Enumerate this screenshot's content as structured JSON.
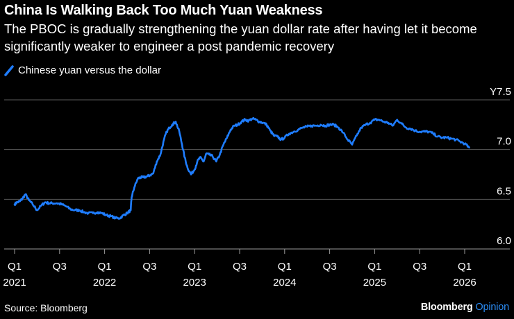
{
  "title": "China Is Walking Back Too Much Yuan Weakness",
  "subtitle": "The PBOC is gradually strengthening the yuan dollar rate after having let it become significantly weaker to engineer a post pandemic recovery",
  "source": "Source: Bloomberg",
  "brand": {
    "name": "Bloomberg",
    "suffix": "Opinion"
  },
  "colors": {
    "line": "#1f7dff",
    "grid": "#5a5a5a",
    "text": "#ffffff",
    "brand_accent": "#2b8cf5"
  },
  "chart_data": {
    "type": "line",
    "title": "China Is Walking Back Too Much Yuan Weakness",
    "xlabel": "",
    "ylabel": "",
    "ylim": [
      6.0,
      7.5
    ],
    "y_ticks": [
      {
        "value": 7.5,
        "label": "Y7.5"
      },
      {
        "value": 7.0,
        "label": "7.0"
      },
      {
        "value": 6.5,
        "label": "6.5"
      },
      {
        "value": 6.0,
        "label": "6.0"
      }
    ],
    "x_range": [
      2021.0,
      2026.1
    ],
    "x_ticks": [
      {
        "value": 2021.0,
        "quarter": "Q1",
        "year": "2021"
      },
      {
        "value": 2021.5,
        "quarter": "Q3",
        "year": ""
      },
      {
        "value": 2022.0,
        "quarter": "Q1",
        "year": "2022"
      },
      {
        "value": 2022.5,
        "quarter": "Q3",
        "year": ""
      },
      {
        "value": 2023.0,
        "quarter": "Q1",
        "year": "2023"
      },
      {
        "value": 2023.5,
        "quarter": "Q3",
        "year": ""
      },
      {
        "value": 2024.0,
        "quarter": "Q1",
        "year": "2024"
      },
      {
        "value": 2024.5,
        "quarter": "Q3",
        "year": ""
      },
      {
        "value": 2025.0,
        "quarter": "Q1",
        "year": "2025"
      },
      {
        "value": 2025.5,
        "quarter": "Q3",
        "year": ""
      },
      {
        "value": 2026.0,
        "quarter": "Q1",
        "year": "2026"
      }
    ],
    "series": [
      {
        "name": "Chinese yuan versus the dollar",
        "x": [
          2021.0,
          2021.03,
          2021.06,
          2021.09,
          2021.12,
          2021.16,
          2021.2,
          2021.25,
          2021.3,
          2021.34,
          2021.38,
          2021.42,
          2021.47,
          2021.52,
          2021.57,
          2021.62,
          2021.67,
          2021.72,
          2021.77,
          2021.82,
          2021.87,
          2021.92,
          2021.97,
          2022.02,
          2022.07,
          2022.12,
          2022.17,
          2022.21,
          2022.25,
          2022.29,
          2022.3,
          2022.33,
          2022.37,
          2022.4,
          2022.43,
          2022.47,
          2022.5,
          2022.54,
          2022.58,
          2022.62,
          2022.66,
          2022.69,
          2022.72,
          2022.75,
          2022.79,
          2022.83,
          2022.86,
          2022.89,
          2022.92,
          2022.96,
          2023.0,
          2023.03,
          2023.06,
          2023.1,
          2023.13,
          2023.16,
          2023.2,
          2023.24,
          2023.28,
          2023.32,
          2023.36,
          2023.4,
          2023.44,
          2023.48,
          2023.52,
          2023.56,
          2023.6,
          2023.64,
          2023.68,
          2023.72,
          2023.76,
          2023.8,
          2023.84,
          2023.88,
          2023.92,
          2023.96,
          2024.0,
          2024.05,
          2024.1,
          2024.15,
          2024.2,
          2024.25,
          2024.3,
          2024.35,
          2024.4,
          2024.45,
          2024.5,
          2024.55,
          2024.6,
          2024.65,
          2024.7,
          2024.75,
          2024.8,
          2024.85,
          2024.9,
          2024.95,
          2025.0,
          2025.05,
          2025.1,
          2025.15,
          2025.2,
          2025.25,
          2025.3,
          2025.35,
          2025.4,
          2025.45,
          2025.5,
          2025.55,
          2025.6,
          2025.65,
          2025.7,
          2025.75,
          2025.8,
          2025.85,
          2025.9,
          2025.95,
          2026.0,
          2026.05
        ],
        "values": [
          6.45,
          6.47,
          6.48,
          6.51,
          6.55,
          6.49,
          6.45,
          6.39,
          6.44,
          6.47,
          6.46,
          6.46,
          6.46,
          6.45,
          6.43,
          6.4,
          6.39,
          6.39,
          6.37,
          6.36,
          6.36,
          6.37,
          6.36,
          6.34,
          6.33,
          6.31,
          6.31,
          6.34,
          6.36,
          6.39,
          6.52,
          6.62,
          6.71,
          6.72,
          6.72,
          6.73,
          6.74,
          6.76,
          6.88,
          6.95,
          7.1,
          7.18,
          7.22,
          7.25,
          7.28,
          7.18,
          7.05,
          6.92,
          6.82,
          6.75,
          6.8,
          6.88,
          6.92,
          6.88,
          6.96,
          6.95,
          6.93,
          6.88,
          6.95,
          7.05,
          7.12,
          7.2,
          7.24,
          7.25,
          7.28,
          7.3,
          7.29,
          7.31,
          7.3,
          7.28,
          7.27,
          7.25,
          7.19,
          7.14,
          7.13,
          7.1,
          7.12,
          7.16,
          7.18,
          7.2,
          7.22,
          7.23,
          7.24,
          7.24,
          7.25,
          7.24,
          7.25,
          7.25,
          7.22,
          7.17,
          7.1,
          7.05,
          7.14,
          7.22,
          7.25,
          7.27,
          7.3,
          7.3,
          7.28,
          7.27,
          7.24,
          7.3,
          7.26,
          7.22,
          7.21,
          7.19,
          7.18,
          7.18,
          7.18,
          7.16,
          7.13,
          7.12,
          7.12,
          7.11,
          7.1,
          7.08,
          7.06,
          7.02
        ]
      }
    ]
  }
}
